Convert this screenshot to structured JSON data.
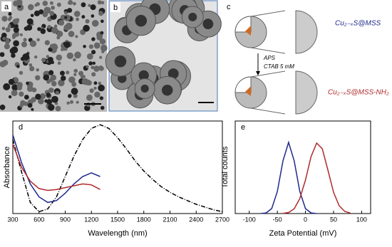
{
  "panels": {
    "a": "a",
    "b": "b",
    "c": "c",
    "top_label": "Cu₂₋ₓS@MSS",
    "arrow_label_1": "APS",
    "arrow_label_2": "CTAB 5 mM",
    "bottom_label": "Cu₂₋ₓS@MSS-NH₂"
  },
  "chart_data": [
    {
      "type": "line",
      "panel_label": "d",
      "xlabel": "Wavelength (nm)",
      "ylabel": "Absorbance",
      "xlim": [
        300,
        2700
      ],
      "xticks": [
        300,
        600,
        900,
        1200,
        1500,
        1800,
        2100,
        2400,
        2700
      ],
      "ylim": [
        0,
        1
      ],
      "series": [
        {
          "color": "#000000",
          "dash": "6,2,1,2",
          "x": [
            300,
            400,
            500,
            600,
            700,
            800,
            900,
            1000,
            1100,
            1200,
            1300,
            1400,
            1500,
            1600,
            1700,
            1800,
            1900,
            2000,
            2100,
            2200,
            2300,
            2400,
            2500,
            2600,
            2700
          ],
          "values": [
            0.8,
            0.45,
            0.12,
            0.02,
            0.05,
            0.18,
            0.4,
            0.62,
            0.8,
            0.92,
            0.96,
            0.92,
            0.82,
            0.7,
            0.57,
            0.46,
            0.37,
            0.29,
            0.23,
            0.18,
            0.14,
            0.1,
            0.07,
            0.04,
            0.02
          ]
        },
        {
          "color": "#1f2a8c",
          "x": [
            300,
            400,
            500,
            600,
            700,
            800,
            900,
            1000,
            1100,
            1200,
            1300
          ],
          "values": [
            0.85,
            0.55,
            0.32,
            0.18,
            0.12,
            0.14,
            0.22,
            0.32,
            0.4,
            0.44,
            0.4
          ]
        },
        {
          "color": "#b02a2a",
          "x": [
            300,
            400,
            500,
            600,
            700,
            800,
            900,
            1000,
            1100,
            1200,
            1300
          ],
          "values": [
            0.75,
            0.5,
            0.35,
            0.27,
            0.25,
            0.26,
            0.28,
            0.3,
            0.32,
            0.31,
            0.26
          ]
        }
      ]
    },
    {
      "type": "line",
      "panel_label": "e",
      "xlabel": "Zeta Potential (mV)",
      "ylabel": "Total counts",
      "xlim": [
        -125,
        116
      ],
      "xticks": [
        -100,
        -50,
        0,
        50,
        100
      ],
      "ylim": [
        0,
        1.3
      ],
      "series": [
        {
          "color": "#1f2a8c",
          "x": [
            -80,
            -70,
            -60,
            -50,
            -40,
            -30,
            -20,
            -10,
            0,
            10,
            20
          ],
          "values": [
            0.0006,
            0.009,
            0.07,
            0.31,
            0.74,
            1,
            0.74,
            0.31,
            0.07,
            0.009,
            0.0006
          ]
        },
        {
          "color": "#b02a2a",
          "x": [
            -40,
            -30,
            -20,
            -10,
            0,
            10,
            20,
            30,
            40,
            50,
            60,
            70,
            80
          ],
          "values": [
            0.003,
            0.015,
            0.066,
            0.21,
            0.47,
            0.8,
            0.99,
            0.91,
            0.61,
            0.3,
            0.11,
            0.03,
            0.006
          ]
        }
      ]
    }
  ]
}
